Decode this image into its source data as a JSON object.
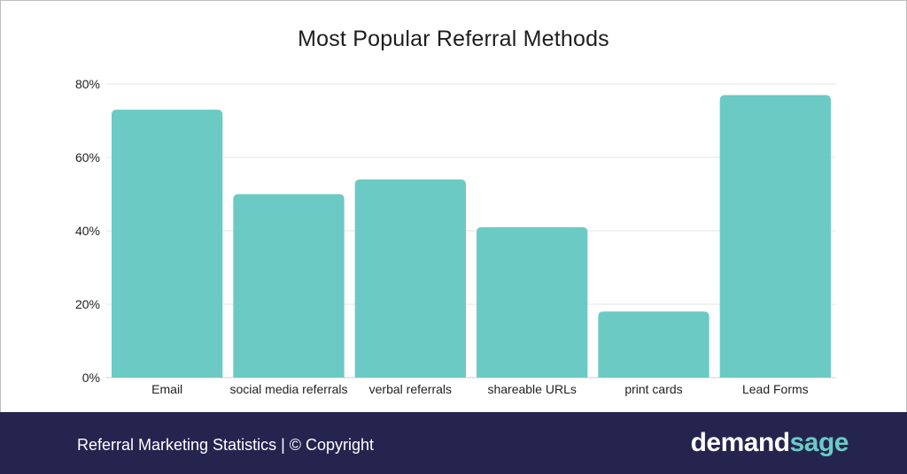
{
  "chart_data": {
    "type": "bar",
    "title": "Most Popular Referral Methods",
    "categories": [
      "Email",
      "social media referrals",
      "verbal referrals",
      "shareable URLs",
      "print cards",
      "Lead Forms"
    ],
    "values": [
      73,
      50,
      54,
      41,
      18,
      77
    ],
    "unit": "%",
    "ylim": [
      0,
      80
    ],
    "yticks": [
      0,
      20,
      40,
      60,
      80
    ],
    "ytick_labels": [
      "0%",
      "20%",
      "40%",
      "60%",
      "80%"
    ],
    "grid": true,
    "legend": "none",
    "bar_color": "#6ccac5",
    "grid_color": "#e6e6e6",
    "text_color": "#222222"
  },
  "footer": {
    "caption": "Referral Marketing Statistics | © Copyright",
    "logo_part1": "demand",
    "logo_part2": "sage",
    "background": "#25244f",
    "logo_accent": "#6ccac5"
  }
}
